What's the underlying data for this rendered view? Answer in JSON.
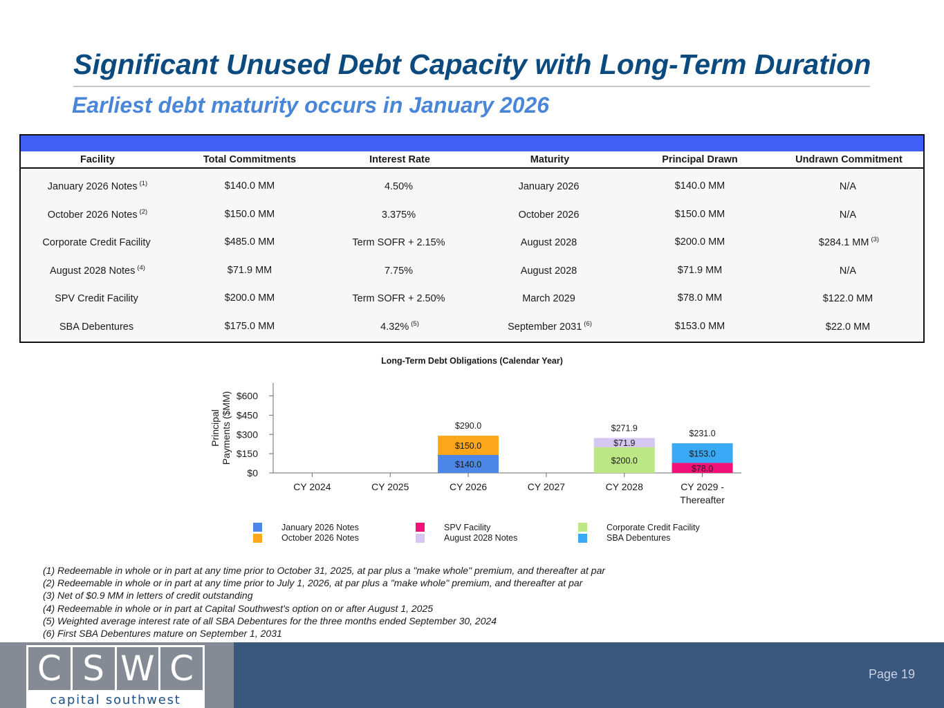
{
  "header": {
    "title": "Significant Unused Debt Capacity with Long-Term Duration",
    "subtitle": "Earliest debt maturity occurs in January 2026"
  },
  "table": {
    "headers": [
      "Facility",
      "Total Commitments",
      "Interest Rate",
      "Maturity",
      "Principal Drawn",
      "Undrawn Commitment"
    ],
    "rows": [
      {
        "facility": "January 2026 Notes",
        "facility_note": "(1)",
        "commitments": "$140.0 MM",
        "rate": "4.50%",
        "rate_note": "",
        "maturity": "January 2026",
        "maturity_note": "",
        "drawn": "$140.0 MM",
        "undrawn": "N/A",
        "undrawn_note": ""
      },
      {
        "facility": "October 2026 Notes",
        "facility_note": "(2)",
        "commitments": "$150.0 MM",
        "rate": "3.375%",
        "rate_note": "",
        "maturity": "October 2026",
        "maturity_note": "",
        "drawn": "$150.0 MM",
        "undrawn": "N/A",
        "undrawn_note": ""
      },
      {
        "facility": "Corporate Credit Facility",
        "facility_note": "",
        "commitments": "$485.0 MM",
        "rate": "Term SOFR + 2.15%",
        "rate_note": "",
        "maturity": "August 2028",
        "maturity_note": "",
        "drawn": "$200.0 MM",
        "undrawn": "$284.1 MM",
        "undrawn_note": "(3)"
      },
      {
        "facility": "August 2028 Notes",
        "facility_note": "(4)",
        "commitments": "$71.9 MM",
        "rate": "7.75%",
        "rate_note": "",
        "maturity": "August 2028",
        "maturity_note": "",
        "drawn": "$71.9 MM",
        "undrawn": "N/A",
        "undrawn_note": ""
      },
      {
        "facility": "SPV Credit Facility",
        "facility_note": "",
        "commitments": "$200.0 MM",
        "rate": "Term SOFR + 2.50%",
        "rate_note": "",
        "maturity": "March 2029",
        "maturity_note": "",
        "drawn": "$78.0 MM",
        "undrawn": "$122.0 MM",
        "undrawn_note": ""
      },
      {
        "facility": "SBA Debentures",
        "facility_note": "",
        "commitments": "$175.0 MM",
        "rate": "4.32%",
        "rate_note": "(5)",
        "maturity": "September 2031",
        "maturity_note": "(6)",
        "drawn": "$153.0 MM",
        "undrawn": "$22.0 MM",
        "undrawn_note": ""
      }
    ]
  },
  "chart_data": {
    "type": "bar",
    "stacked": true,
    "title": "Long-Term Debt Obligations (Calendar Year)",
    "ylabel": "Principal Payments ($MM)",
    "ylim": [
      0,
      700
    ],
    "yticks": [
      0,
      150,
      300,
      450,
      600
    ],
    "ytick_labels": [
      "$0",
      "$150",
      "$300",
      "$450",
      "$600"
    ],
    "categories": [
      "CY 2024",
      "CY 2025",
      "CY 2026",
      "CY 2027",
      "CY 2028",
      "CY 2029 - Thereafter"
    ],
    "category_lines": [
      [
        "CY 2024"
      ],
      [
        "CY 2025"
      ],
      [
        "CY 2026"
      ],
      [
        "CY 2027"
      ],
      [
        "CY 2028"
      ],
      [
        "CY 2029 -",
        "Thereafter"
      ]
    ],
    "series": [
      {
        "name": "January 2026 Notes",
        "color": "#4c86e6",
        "values": [
          0,
          0,
          140.0,
          0,
          0,
          0
        ],
        "labels": [
          "",
          "",
          "$140.0",
          "",
          "",
          ""
        ]
      },
      {
        "name": "October 2026 Notes",
        "color": "#fba71b",
        "values": [
          0,
          0,
          150.0,
          0,
          0,
          0
        ],
        "labels": [
          "",
          "",
          "$150.0",
          "",
          "",
          ""
        ]
      },
      {
        "name": "SPV Facility",
        "color": "#f2127a",
        "values": [
          0,
          0,
          0,
          0,
          0,
          78.0
        ],
        "labels": [
          "",
          "",
          "",
          "",
          "",
          "$78.0"
        ]
      },
      {
        "name": "August 2028 Notes",
        "color": "#d6c6f2",
        "values": [
          0,
          0,
          0,
          0,
          71.9,
          0
        ],
        "labels": [
          "",
          "",
          "",
          "",
          "$71.9",
          ""
        ]
      },
      {
        "name": "Corporate Credit Facility",
        "color": "#bde784",
        "values": [
          0,
          0,
          0,
          0,
          200.0,
          0
        ],
        "labels": [
          "",
          "",
          "",
          "",
          "$200.0",
          ""
        ]
      },
      {
        "name": "SBA Debentures",
        "color": "#3aa9f5",
        "values": [
          0,
          0,
          0,
          0,
          0,
          153.0
        ],
        "labels": [
          "",
          "",
          "",
          "",
          "",
          "$153.0"
        ]
      }
    ],
    "stack_order": [
      "January 2026 Notes",
      "SPV Facility",
      "Corporate Credit Facility",
      "October 2026 Notes",
      "August 2028 Notes",
      "SBA Debentures"
    ],
    "totals": [
      "",
      "",
      "$290.0",
      "",
      "$271.9",
      "$231.0"
    ],
    "legend": {
      "position": "bottom",
      "columns": [
        [
          "January 2026 Notes",
          "October 2026 Notes"
        ],
        [
          "SPV Facility",
          "August 2028 Notes"
        ],
        [
          "Corporate Credit Facility",
          "SBA Debentures"
        ]
      ]
    },
    "grid": false
  },
  "footnotes": [
    "(1) Redeemable in whole or in part at any time prior to October 31, 2025, at par plus a \"make whole\" premium, and thereafter at par",
    "(2) Redeemable in whole or in part at any time prior to July 1, 2026, at par plus a \"make whole\" premium, and thereafter at par",
    "(3) Net of $0.9 MM in letters of credit outstanding",
    "(4) Redeemable in whole or in part at Capital Southwest's option on or after August 1, 2025",
    "(5) Weighted average interest rate of all SBA Debentures for the three months ended September 30, 2024",
    "(6) First SBA Debentures mature on September 1, 2031"
  ],
  "footer": {
    "logo_letters": [
      "C",
      "S",
      "W",
      "C"
    ],
    "logo_text": "capital southwest",
    "page_label": "Page 19"
  },
  "colors": {
    "title": "#0b4a7e",
    "subtitle": "#4a86d8",
    "table_band": "#3f5ff5",
    "footer": "#3a577e",
    "footer_gray": "#858b94"
  }
}
